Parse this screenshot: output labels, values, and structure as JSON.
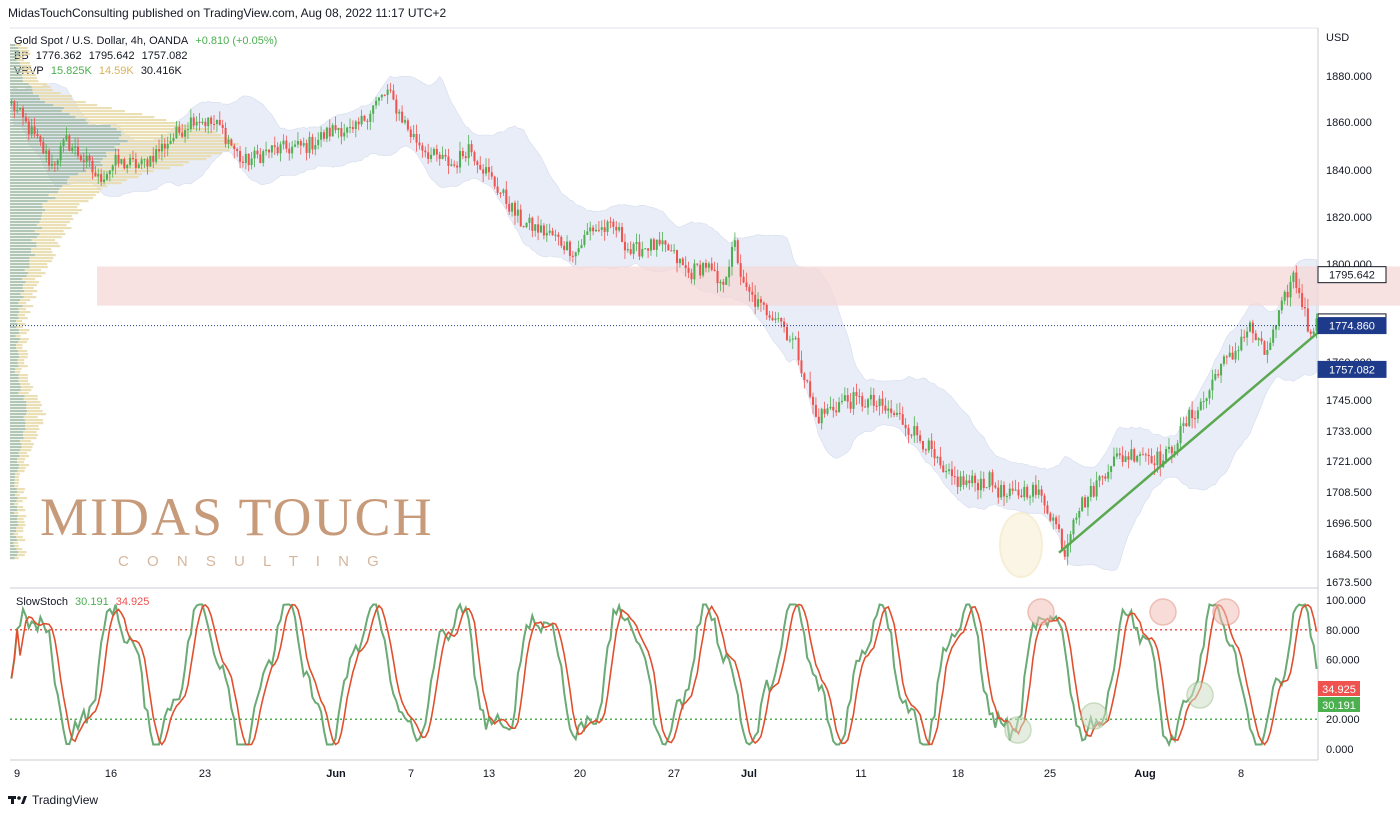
{
  "header": {
    "published": "MidasTouchConsulting published on TradingView.com, Aug 08, 2022 11:17 UTC+2",
    "symbol": "Gold Spot / U.S. Dollar, 4h, OANDA",
    "change": "+0.810 (+0.05%)",
    "bb_label": "BB",
    "bb_values": [
      "1776.362",
      "1795.642",
      "1757.082"
    ],
    "vrvp_label": "VRVP",
    "vrvp_values": [
      "15.825K",
      "14.59K",
      "30.416K"
    ],
    "currency": "USD"
  },
  "watermark": {
    "line1": "MIDAS TOUCH",
    "line2": "C O N S U L T I N G"
  },
  "footer": {
    "brand": "TradingView"
  },
  "colors": {
    "up": "#4caf50",
    "down": "#ef5350",
    "bb_fill": "#e8edf8",
    "zone": "#f5d7d7",
    "trend": "#5aa84f",
    "k_line": "#6aaa74",
    "d_line": "#e0502e",
    "price_line": "#1e3a8a"
  },
  "chart_data": [
    {
      "type": "candlestick",
      "title": "Gold Spot / U.S. Dollar, 4h, OANDA",
      "x_ticks": [
        "9",
        "16",
        "23",
        "Jun",
        "7",
        "13",
        "20",
        "27",
        "Jul",
        "11",
        "18",
        "25",
        "Aug",
        "8"
      ],
      "y_ticks": [
        "1880.000",
        "1860.000",
        "1840.000",
        "1820.000",
        "1800.000",
        "1760.000",
        "1745.000",
        "1733.000",
        "1721.000",
        "1708.500",
        "1696.500",
        "1684.500",
        "1673.500"
      ],
      "price_labels": [
        {
          "value": "1795.642",
          "color": "#131722",
          "bg": "#ffffff",
          "border": "#131722"
        },
        {
          "value": "1776.362",
          "color": "#131722",
          "bg": "#ffffff",
          "border": "#131722"
        },
        {
          "value": "1774.860",
          "color": "#ffffff",
          "bg": "#1e3a8a",
          "border": "#1e3a8a"
        },
        {
          "value": "1757.082",
          "color": "#ffffff",
          "bg": "#1e3a8a",
          "border": "#1e3a8a"
        }
      ],
      "path_points": [
        [
          0,
          1868
        ],
        [
          10,
          1850
        ],
        [
          14,
          1842
        ],
        [
          19,
          1852
        ],
        [
          26,
          1843
        ],
        [
          30,
          1836
        ],
        [
          36,
          1843
        ],
        [
          45,
          1842
        ],
        [
          58,
          1856
        ],
        [
          63,
          1862
        ],
        [
          72,
          1858
        ],
        [
          80,
          1843
        ],
        [
          89,
          1848
        ],
        [
          102,
          1850
        ],
        [
          113,
          1858
        ],
        [
          118,
          1855
        ],
        [
          125,
          1867
        ],
        [
          130,
          1873
        ],
        [
          138,
          1855
        ],
        [
          145,
          1846
        ],
        [
          153,
          1842
        ],
        [
          158,
          1850
        ],
        [
          167,
          1834
        ],
        [
          176,
          1818
        ],
        [
          187,
          1812
        ],
        [
          195,
          1805
        ],
        [
          200,
          1815
        ],
        [
          209,
          1815
        ],
        [
          214,
          1805
        ],
        [
          220,
          1808
        ],
        [
          227,
          1806
        ],
        [
          234,
          1796
        ],
        [
          240,
          1800
        ],
        [
          245,
          1790
        ],
        [
          250,
          1808
        ],
        [
          253,
          1790
        ],
        [
          259,
          1782
        ],
        [
          265,
          1779
        ],
        [
          268,
          1772
        ],
        [
          271,
          1767
        ],
        [
          278,
          1738
        ],
        [
          288,
          1745
        ],
        [
          297,
          1744
        ],
        [
          307,
          1738
        ],
        [
          316,
          1728
        ],
        [
          322,
          1715
        ],
        [
          330,
          1712
        ],
        [
          338,
          1713
        ],
        [
          344,
          1706
        ],
        [
          352,
          1710
        ],
        [
          357,
          1705
        ],
        [
          360,
          1698
        ],
        [
          362,
          1693
        ],
        [
          364,
          1685
        ],
        [
          367,
          1700
        ],
        [
          373,
          1708
        ],
        [
          380,
          1721
        ],
        [
          390,
          1725
        ],
        [
          398,
          1721
        ],
        [
          402,
          1728
        ],
        [
          407,
          1738
        ],
        [
          413,
          1746
        ],
        [
          417,
          1758
        ],
        [
          422,
          1762
        ],
        [
          425,
          1770
        ],
        [
          428,
          1774
        ],
        [
          433,
          1763
        ],
        [
          436,
          1771
        ],
        [
          441,
          1789
        ],
        [
          443,
          1795
        ],
        [
          446,
          1785
        ],
        [
          448,
          1774
        ],
        [
          452,
          1776
        ]
      ],
      "n_bars": 452,
      "bollinger": {
        "upper": "1795.642",
        "middle": "1776.362",
        "lower": "1757.082"
      },
      "resistance_zone": [
        1783,
        1799
      ],
      "current_price": 1774.86,
      "trendline": [
        [
          362,
          1685
        ],
        [
          453,
          1777
        ]
      ],
      "volume_profile": true
    },
    {
      "type": "line",
      "title": "SlowStoch",
      "values_shown": [
        "30.191",
        "34.925"
      ],
      "y_ticks": [
        "100.000",
        "80.000",
        "60.000",
        "20.000",
        "0.000"
      ],
      "bands": [
        80,
        20
      ],
      "value_labels": [
        {
          "value": "34.925",
          "bg": "#ef5350"
        },
        {
          "value": "30.191",
          "bg": "#4caf50"
        }
      ]
    }
  ]
}
